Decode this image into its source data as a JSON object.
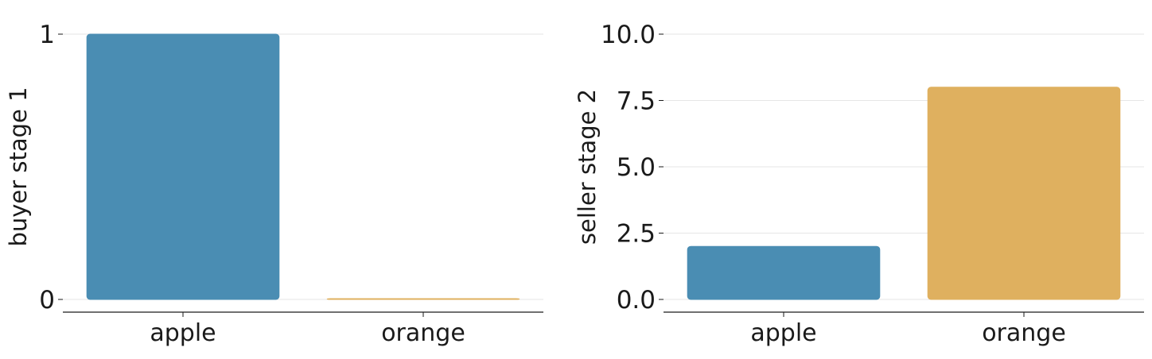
{
  "chart_data": [
    {
      "type": "bar",
      "categories": [
        "apple",
        "orange"
      ],
      "values": [
        1,
        0
      ],
      "colors": [
        "#4a8db3",
        "#dfb05f"
      ],
      "xlabel": "",
      "ylabel": "buyer stage 1",
      "ylim": [
        0,
        1
      ],
      "yticks": [
        0,
        1
      ],
      "ytick_labels": [
        "0",
        "1"
      ],
      "grid": "horizontal"
    },
    {
      "type": "bar",
      "categories": [
        "apple",
        "orange"
      ],
      "values": [
        2,
        8
      ],
      "colors": [
        "#4a8db3",
        "#dfb05f"
      ],
      "xlabel": "",
      "ylabel": "seller stage 2",
      "ylim": [
        0,
        10
      ],
      "yticks": [
        0,
        2.5,
        5,
        7.5,
        10
      ],
      "ytick_labels": [
        "0.0",
        "2.5",
        "5.0",
        "7.5",
        "10.0"
      ],
      "grid": "horizontal"
    }
  ]
}
